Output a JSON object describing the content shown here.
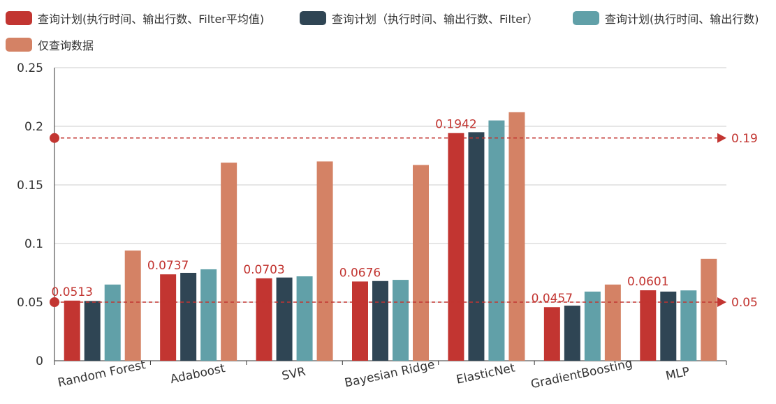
{
  "chart_data": {
    "type": "bar",
    "categories": [
      "Random Forest",
      "Adaboost",
      "SVR",
      "Bayesian Ridge",
      "ElasticNet",
      "GradientBoosting",
      "MLP"
    ],
    "ylim": [
      0,
      0.25
    ],
    "yticks": [
      0,
      0.05,
      0.1,
      0.15,
      0.2,
      0.25
    ],
    "ytick_labels": [
      "0",
      "0.05",
      "0.1",
      "0.15",
      "0.2",
      "0.25"
    ],
    "grid": true,
    "legend_position": "top",
    "series": [
      {
        "name": "查询计划(执行时间、输出行数、Filter平均值)",
        "color": "#c23531",
        "values": [
          0.0513,
          0.0737,
          0.0703,
          0.0676,
          0.1942,
          0.0457,
          0.0601
        ],
        "data_labels": [
          "0.0513",
          "0.0737",
          "0.0703",
          "0.0676",
          "0.1942",
          "0.0457",
          "0.0601"
        ]
      },
      {
        "name": "查询计划（执行时间、输出行数、Filter）",
        "color": "#2f4554",
        "values": [
          0.051,
          0.075,
          0.071,
          0.068,
          0.195,
          0.047,
          0.059
        ]
      },
      {
        "name": "查询计划(执行时间、输出行数)",
        "color": "#61a0a8",
        "values": [
          0.065,
          0.078,
          0.072,
          0.069,
          0.205,
          0.059,
          0.06
        ]
      },
      {
        "name": "仅查询数据",
        "color": "#d48265",
        "values": [
          0.094,
          0.169,
          0.17,
          0.167,
          0.212,
          0.065,
          0.087
        ]
      }
    ],
    "mark_lines": [
      {
        "value": 0.19,
        "label": "0.19",
        "color": "#c23531"
      },
      {
        "value": 0.05,
        "label": "0.05",
        "color": "#c23531"
      }
    ]
  }
}
